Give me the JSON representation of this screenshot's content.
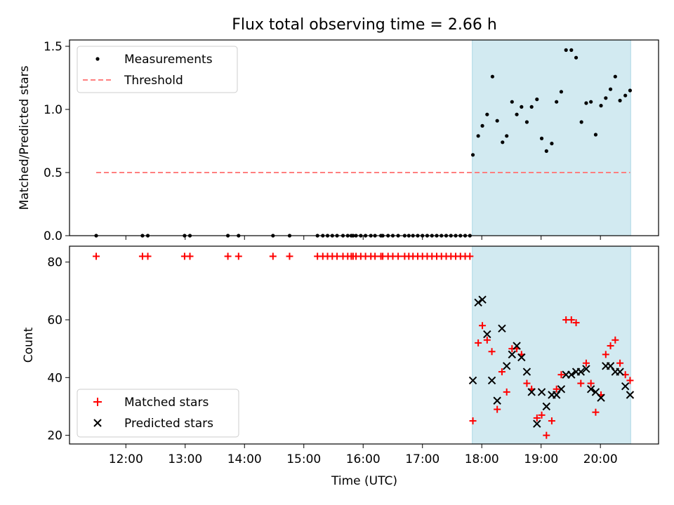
{
  "figure": {
    "title": "Flux total observing time = 2.66 h",
    "xlabel": "Time (UTC)"
  },
  "chart_data": [
    {
      "type": "scatter",
      "ylabel": "Matched/Predicted stars",
      "xlim_hours": [
        11.05,
        20.98
      ],
      "ylim": [
        0,
        1.55
      ],
      "y_ticks": [
        0.0,
        0.5,
        1.0,
        1.5
      ],
      "y_tick_labels": [
        "0.0",
        "0.5",
        "1.0",
        "1.5"
      ],
      "x_ticks_hours": [
        12,
        13,
        14,
        15,
        16,
        17,
        18,
        19,
        20
      ],
      "shaded_region_hours": [
        17.84,
        20.51
      ],
      "shaded_color": "#add8e6",
      "legend_position": "upper left",
      "legend": [
        {
          "label": "Measurements",
          "marker": "dot",
          "color": "#000000"
        },
        {
          "label": "Threshold",
          "marker": "dashed-line",
          "color": "#ff7f7f"
        }
      ],
      "threshold": {
        "value": 0.5,
        "x_range_hours": [
          11.5,
          20.5
        ],
        "color": "#ff7f7f"
      },
      "series": [
        {
          "name": "Measurements",
          "color": "#000000",
          "points": [
            [
              11.5,
              0
            ],
            [
              12.28,
              0
            ],
            [
              12.37,
              0
            ],
            [
              12.99,
              0
            ],
            [
              13.08,
              0
            ],
            [
              13.72,
              0
            ],
            [
              13.9,
              0
            ],
            [
              14.48,
              0
            ],
            [
              14.76,
              0
            ],
            [
              15.23,
              0
            ],
            [
              15.32,
              0
            ],
            [
              15.4,
              0
            ],
            [
              15.48,
              0
            ],
            [
              15.56,
              0
            ],
            [
              15.66,
              0
            ],
            [
              15.74,
              0
            ],
            [
              15.8,
              0
            ],
            [
              15.83,
              0
            ],
            [
              15.88,
              0
            ],
            [
              15.96,
              0
            ],
            [
              16.04,
              0
            ],
            [
              16.13,
              0
            ],
            [
              16.2,
              0
            ],
            [
              16.3,
              0
            ],
            [
              16.33,
              0
            ],
            [
              16.42,
              0
            ],
            [
              16.5,
              0
            ],
            [
              16.59,
              0
            ],
            [
              16.7,
              0
            ],
            [
              16.77,
              0
            ],
            [
              16.84,
              0
            ],
            [
              16.92,
              0
            ],
            [
              17.0,
              0
            ],
            [
              17.08,
              0
            ],
            [
              17.16,
              0
            ],
            [
              17.24,
              0
            ],
            [
              17.32,
              0
            ],
            [
              17.4,
              0
            ],
            [
              17.48,
              0
            ],
            [
              17.56,
              0
            ],
            [
              17.64,
              0
            ],
            [
              17.72,
              0
            ],
            [
              17.8,
              0
            ],
            [
              17.85,
              0.64
            ],
            [
              17.94,
              0.79
            ],
            [
              18.01,
              0.87
            ],
            [
              18.09,
              0.96
            ],
            [
              18.18,
              1.26
            ],
            [
              18.26,
              0.91
            ],
            [
              18.35,
              0.74
            ],
            [
              18.42,
              0.79
            ],
            [
              18.51,
              1.06
            ],
            [
              18.59,
              0.96
            ],
            [
              18.67,
              1.02
            ],
            [
              18.76,
              0.9
            ],
            [
              18.84,
              1.02
            ],
            [
              18.93,
              1.08
            ],
            [
              19.01,
              0.77
            ],
            [
              19.09,
              0.67
            ],
            [
              19.18,
              0.73
            ],
            [
              19.26,
              1.06
            ],
            [
              19.34,
              1.14
            ],
            [
              19.42,
              1.47
            ],
            [
              19.51,
              1.47
            ],
            [
              19.59,
              1.41
            ],
            [
              19.68,
              0.9
            ],
            [
              19.76,
              1.05
            ],
            [
              19.84,
              1.06
            ],
            [
              19.92,
              0.8
            ],
            [
              20.01,
              1.03
            ],
            [
              20.09,
              1.09
            ],
            [
              20.17,
              1.16
            ],
            [
              20.25,
              1.26
            ],
            [
              20.33,
              1.07
            ],
            [
              20.42,
              1.11
            ],
            [
              20.5,
              1.15
            ]
          ]
        }
      ]
    },
    {
      "type": "scatter",
      "ylabel": "Count",
      "xlim_hours": [
        11.05,
        20.98
      ],
      "ylim": [
        17,
        85.5
      ],
      "y_ticks": [
        20,
        40,
        60,
        80
      ],
      "y_tick_labels": [
        "20",
        "40",
        "60",
        "80"
      ],
      "x_ticks_hours": [
        12,
        13,
        14,
        15,
        16,
        17,
        18,
        19,
        20
      ],
      "x_tick_labels": [
        "12:00",
        "13:00",
        "14:00",
        "15:00",
        "16:00",
        "17:00",
        "18:00",
        "19:00",
        "20:00"
      ],
      "shaded_region_hours": [
        17.84,
        20.51
      ],
      "shaded_color": "#add8e6",
      "legend_position": "lower left",
      "legend": [
        {
          "label": "Matched stars",
          "marker": "plus",
          "color": "#ff0000"
        },
        {
          "label": "Predicted stars",
          "marker": "x",
          "color": "#000000"
        }
      ],
      "series": [
        {
          "name": "Matched stars",
          "marker": "plus",
          "color": "#ff0000",
          "points": [
            [
              11.5,
              82
            ],
            [
              12.28,
              82
            ],
            [
              12.37,
              82
            ],
            [
              12.99,
              82
            ],
            [
              13.08,
              82
            ],
            [
              13.72,
              82
            ],
            [
              13.9,
              82
            ],
            [
              14.48,
              82
            ],
            [
              14.76,
              82
            ],
            [
              15.23,
              82
            ],
            [
              15.32,
              82
            ],
            [
              15.4,
              82
            ],
            [
              15.48,
              82
            ],
            [
              15.56,
              82
            ],
            [
              15.66,
              82
            ],
            [
              15.74,
              82
            ],
            [
              15.8,
              82
            ],
            [
              15.83,
              82
            ],
            [
              15.88,
              82
            ],
            [
              15.96,
              82
            ],
            [
              16.04,
              82
            ],
            [
              16.13,
              82
            ],
            [
              16.2,
              82
            ],
            [
              16.3,
              82
            ],
            [
              16.33,
              82
            ],
            [
              16.42,
              82
            ],
            [
              16.5,
              82
            ],
            [
              16.59,
              82
            ],
            [
              16.7,
              82
            ],
            [
              16.77,
              82
            ],
            [
              16.84,
              82
            ],
            [
              16.92,
              82
            ],
            [
              17.0,
              82
            ],
            [
              17.08,
              82
            ],
            [
              17.16,
              82
            ],
            [
              17.24,
              82
            ],
            [
              17.32,
              82
            ],
            [
              17.4,
              82
            ],
            [
              17.48,
              82
            ],
            [
              17.56,
              82
            ],
            [
              17.64,
              82
            ],
            [
              17.72,
              82
            ],
            [
              17.8,
              82
            ],
            [
              17.85,
              25
            ],
            [
              17.94,
              52
            ],
            [
              18.01,
              58
            ],
            [
              18.09,
              53
            ],
            [
              18.17,
              49
            ],
            [
              18.26,
              29
            ],
            [
              18.34,
              42
            ],
            [
              18.42,
              35
            ],
            [
              18.51,
              50
            ],
            [
              18.59,
              50
            ],
            [
              18.67,
              48
            ],
            [
              18.76,
              38
            ],
            [
              18.84,
              36
            ],
            [
              18.93,
              26
            ],
            [
              19.01,
              27
            ],
            [
              19.09,
              20
            ],
            [
              19.18,
              25
            ],
            [
              19.26,
              36
            ],
            [
              19.34,
              41
            ],
            [
              19.42,
              60
            ],
            [
              19.51,
              60
            ],
            [
              19.59,
              59
            ],
            [
              19.67,
              38
            ],
            [
              19.76,
              45
            ],
            [
              19.84,
              38
            ],
            [
              19.92,
              28
            ],
            [
              20.01,
              34
            ],
            [
              20.09,
              48
            ],
            [
              20.17,
              51
            ],
            [
              20.25,
              53
            ],
            [
              20.33,
              45
            ],
            [
              20.42,
              41
            ],
            [
              20.5,
              39
            ]
          ]
        },
        {
          "name": "Predicted stars",
          "marker": "x",
          "color": "#000000",
          "points": [
            [
              17.85,
              39
            ],
            [
              17.94,
              66
            ],
            [
              18.01,
              67
            ],
            [
              18.09,
              55
            ],
            [
              18.17,
              39
            ],
            [
              18.26,
              32
            ],
            [
              18.34,
              57
            ],
            [
              18.42,
              44
            ],
            [
              18.51,
              48
            ],
            [
              18.59,
              51
            ],
            [
              18.67,
              47
            ],
            [
              18.76,
              42
            ],
            [
              18.84,
              35
            ],
            [
              18.93,
              24
            ],
            [
              19.01,
              35
            ],
            [
              19.09,
              30
            ],
            [
              19.18,
              34
            ],
            [
              19.26,
              34
            ],
            [
              19.34,
              36
            ],
            [
              19.42,
              41
            ],
            [
              19.51,
              41
            ],
            [
              19.59,
              42
            ],
            [
              19.67,
              42
            ],
            [
              19.76,
              43
            ],
            [
              19.84,
              36
            ],
            [
              19.92,
              35
            ],
            [
              20.01,
              33
            ],
            [
              20.09,
              44
            ],
            [
              20.17,
              44
            ],
            [
              20.25,
              42
            ],
            [
              20.33,
              42
            ],
            [
              20.42,
              37
            ],
            [
              20.5,
              34
            ]
          ]
        }
      ]
    }
  ]
}
